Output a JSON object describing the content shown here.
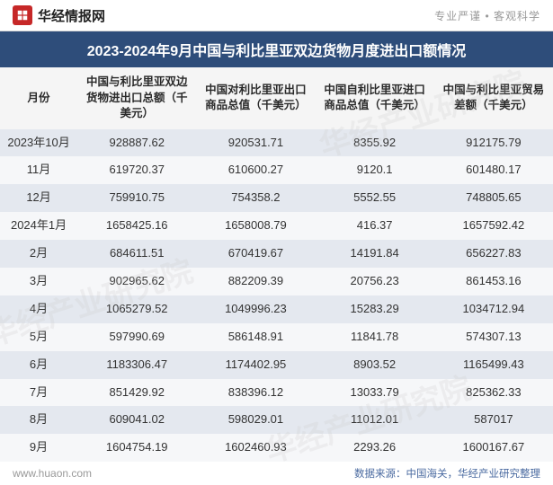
{
  "header": {
    "site_name": "华经情报网",
    "slogan": "专业严谨 • 客观科学"
  },
  "title": "2023-2024年9月中国与利比里亚双边货物月度进出口额情况",
  "table": {
    "columns": [
      "月份",
      "中国与利比里亚双边货物进出口总额（千美元）",
      "中国对利比里亚出口商品总值（千美元）",
      "中国自利比里亚进口商品总值（千美元）",
      "中国与利比里亚贸易差额（千美元）"
    ],
    "rows": [
      [
        "2023年10月",
        "928887.62",
        "920531.71",
        "8355.92",
        "912175.79"
      ],
      [
        "11月",
        "619720.37",
        "610600.27",
        "9120.1",
        "601480.17"
      ],
      [
        "12月",
        "759910.75",
        "754358.2",
        "5552.55",
        "748805.65"
      ],
      [
        "2024年1月",
        "1658425.16",
        "1658008.79",
        "416.37",
        "1657592.42"
      ],
      [
        "2月",
        "684611.51",
        "670419.67",
        "14191.84",
        "656227.83"
      ],
      [
        "3月",
        "902965.62",
        "882209.39",
        "20756.23",
        "861453.16"
      ],
      [
        "4月",
        "1065279.52",
        "1049996.23",
        "15283.29",
        "1034712.94"
      ],
      [
        "5月",
        "597990.69",
        "586148.91",
        "11841.78",
        "574307.13"
      ],
      [
        "6月",
        "1183306.47",
        "1174402.95",
        "8903.52",
        "1165499.43"
      ],
      [
        "7月",
        "851429.92",
        "838396.12",
        "13033.79",
        "825362.33"
      ],
      [
        "8月",
        "609041.02",
        "598029.01",
        "11012.01",
        "587017"
      ],
      [
        "9月",
        "1604754.19",
        "1602460.93",
        "2293.26",
        "1600167.67"
      ]
    ]
  },
  "footer": {
    "url": "www.huaon.com",
    "source": "数据来源：中国海关，华经产业研究整理"
  },
  "watermark": "华经产业研究院",
  "styling": {
    "title_bg": "#2e4d7a",
    "title_color": "#ffffff",
    "header_row_bg": "#f5f5f5",
    "row_odd_bg": "#e4e8ef",
    "row_even_bg": "#f6f7f9",
    "text_color": "#333333",
    "footer_source_color": "#4a6aa0",
    "logo_bg": "#c62828",
    "title_fontsize": 16,
    "header_fontsize": 12.5,
    "cell_fontsize": 13,
    "footer_fontsize": 12,
    "col_widths_pct": [
      14,
      21.5,
      21.5,
      21.5,
      21.5
    ]
  }
}
